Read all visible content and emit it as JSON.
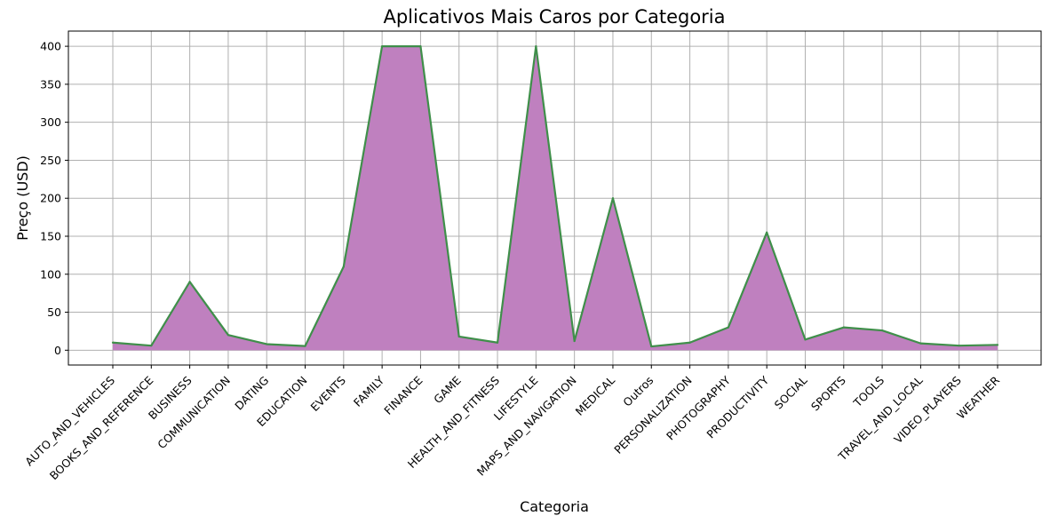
{
  "chart_data": {
    "type": "area",
    "title": "Aplicativos Mais Caros por Categoria",
    "xlabel": "Categoria",
    "ylabel": "Preço (USD)",
    "categories": [
      "AUTO_AND_VEHICLES",
      "BOOKS_AND_REFERENCE",
      "BUSINESS",
      "COMMUNICATION",
      "DATING",
      "EDUCATION",
      "EVENTS",
      "FAMILY",
      "FINANCE",
      "GAME",
      "HEALTH_AND_FITNESS",
      "LIFESTYLE",
      "MAPS_AND_NAVIGATION",
      "MEDICAL",
      "Outros",
      "PERSONALIZATION",
      "PHOTOGRAPHY",
      "PRODUCTIVITY",
      "SOCIAL",
      "SPORTS",
      "TOOLS",
      "TRAVEL_AND_LOCAL",
      "VIDEO_PLAYERS",
      "WEATHER"
    ],
    "values": [
      9.99,
      6,
      90,
      20,
      8,
      5.5,
      110,
      400,
      400,
      18,
      10,
      400,
      12,
      200,
      5,
      10,
      30,
      155,
      14,
      30,
      26,
      9,
      6,
      7
    ],
    "ylim": [
      -19.5,
      420
    ],
    "yticks": [
      0,
      50,
      100,
      150,
      200,
      250,
      300,
      350,
      400
    ],
    "grid": true,
    "fill_color": "#bf80bf",
    "line_color": "#3f8f4a"
  }
}
